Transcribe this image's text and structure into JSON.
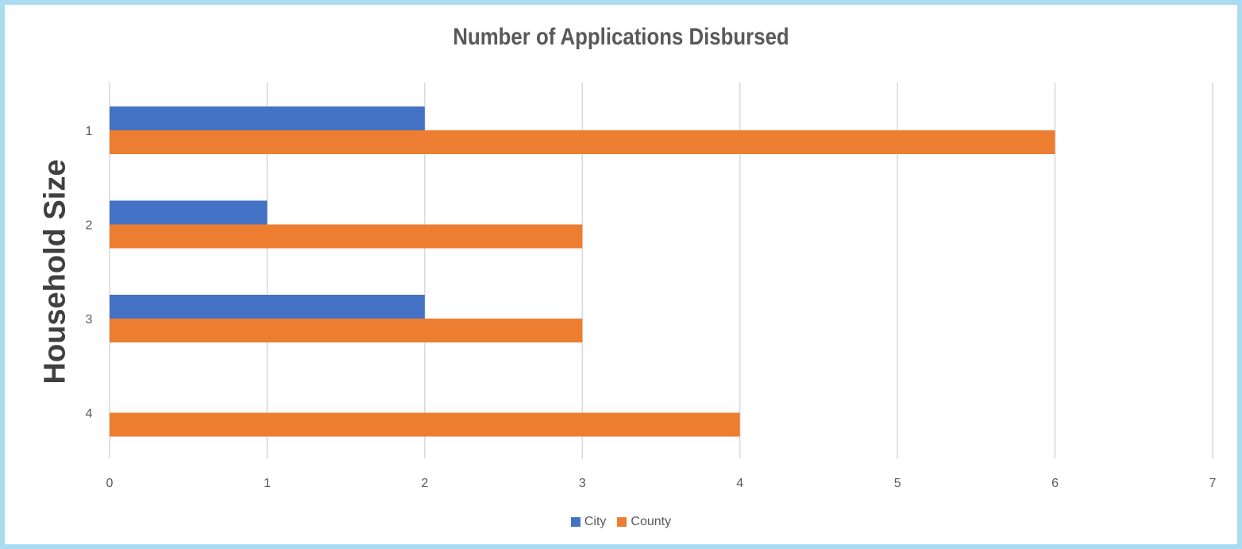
{
  "chart_data": {
    "type": "bar",
    "orientation": "horizontal",
    "title": "Number of Applications Disbursed",
    "ylabel": "Household Size",
    "xlabel": "",
    "categories": [
      "1",
      "2",
      "3",
      "4"
    ],
    "series": [
      {
        "name": "City",
        "color": "#4472c4",
        "values": [
          2,
          1,
          2,
          null
        ]
      },
      {
        "name": "County",
        "color": "#ed7d31",
        "values": [
          6,
          3,
          3,
          4
        ]
      }
    ],
    "xlim": [
      0,
      7
    ],
    "xticks": [
      0,
      1,
      2,
      3,
      4,
      5,
      6,
      7
    ],
    "grid": true,
    "legend_position": "bottom"
  }
}
